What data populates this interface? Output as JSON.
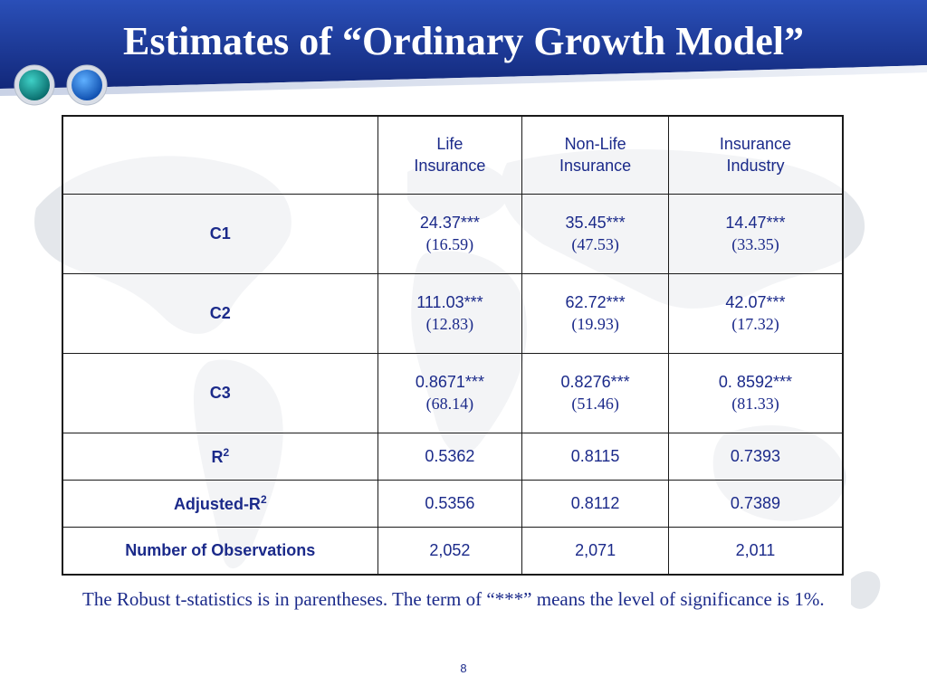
{
  "slide": {
    "title": "Estimates of “Ordinary Growth Model”",
    "page_number": "8",
    "note": "The Robust t-statistics is in parentheses. The term of “***” means the level of significance is 1%."
  },
  "table": {
    "columns": [
      "",
      "Life Insurance",
      "Non-Life Insurance",
      "Insurance Industry"
    ],
    "columns_lines": [
      [
        "Life",
        "Insurance"
      ],
      [
        "Non-Life",
        "Insurance"
      ],
      [
        "Insurance",
        "Industry"
      ]
    ],
    "rows": [
      {
        "label": "C1",
        "values": [
          "24.37***",
          "35.45***",
          "14.47***"
        ],
        "tstats": [
          "(16.59)",
          "(47.53)",
          "(33.35)"
        ]
      },
      {
        "label": "C2",
        "values": [
          "111.03***",
          "62.72***",
          "42.07***"
        ],
        "tstats": [
          "(12.83)",
          "(19.93)",
          "(17.32)"
        ]
      },
      {
        "label": "C3",
        "values": [
          "0.8671***",
          "0.8276***",
          "0. 8592***"
        ],
        "tstats": [
          "(68.14)",
          "(51.46)",
          "(81.33)"
        ]
      },
      {
        "label": "R",
        "label_sup": "2",
        "values": [
          "0.5362",
          "0.8115",
          "0.7393"
        ]
      },
      {
        "label": "Adjusted-R",
        "label_sup": "2",
        "values": [
          "0.5356",
          "0.8112",
          "0.7389"
        ]
      },
      {
        "label": "Number of Observations",
        "values": [
          "2,052",
          "2,071",
          "2,011"
        ]
      }
    ]
  },
  "colors": {
    "header_blue": "#1d3b9a",
    "text_blue": "#1b2a8a",
    "orb_teal": "#0f8f8f",
    "orb_blue": "#1f6fd1"
  }
}
